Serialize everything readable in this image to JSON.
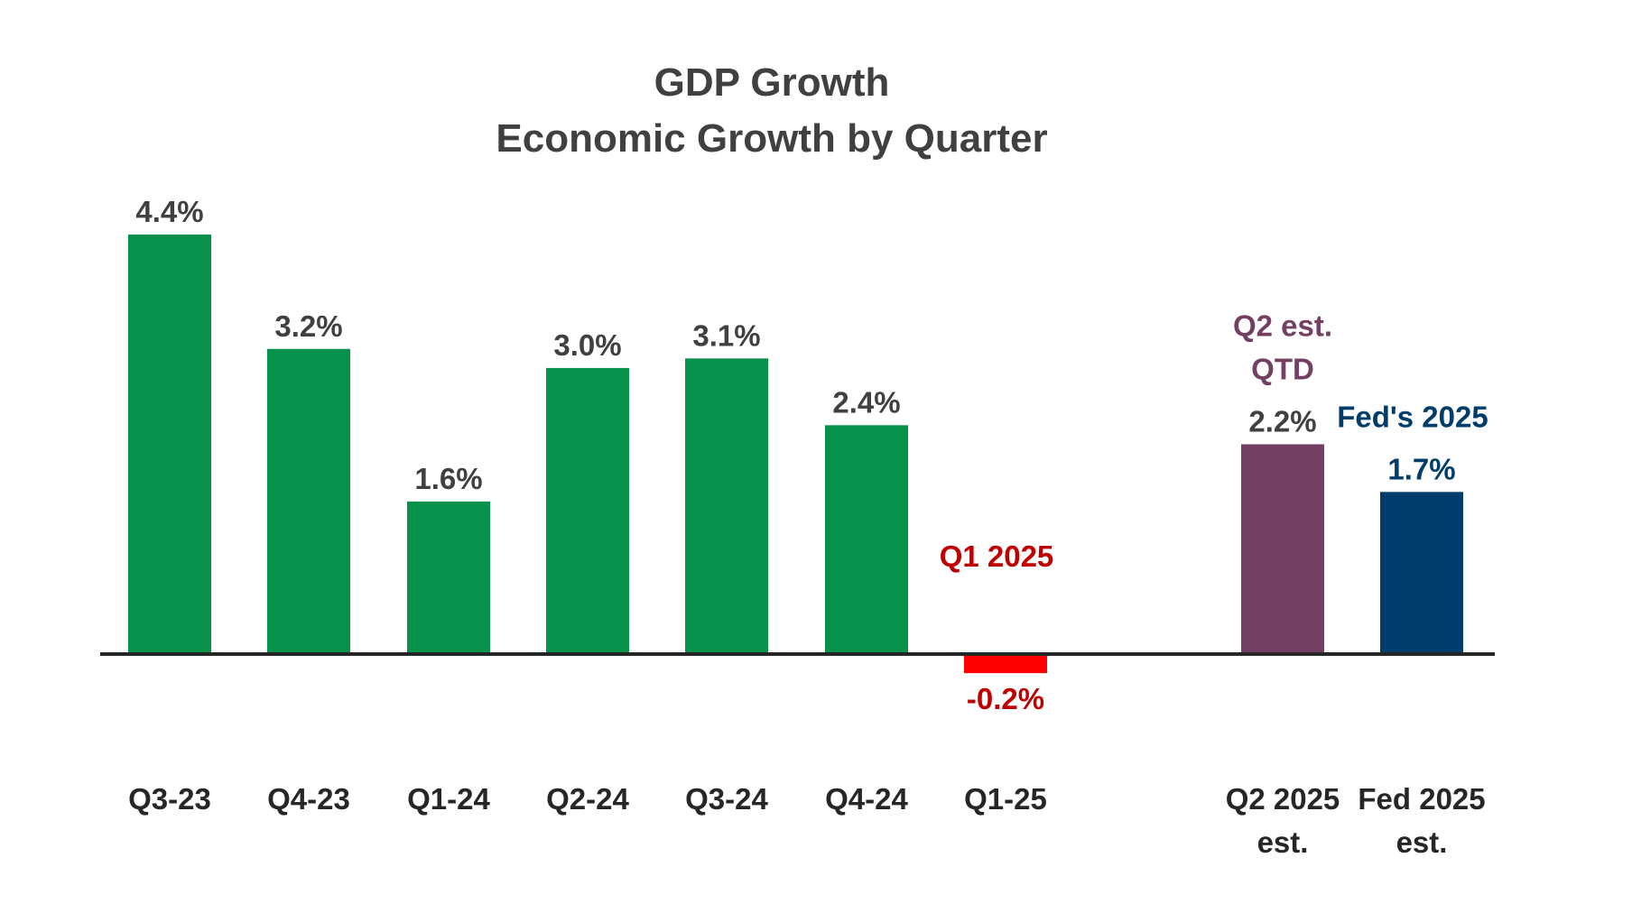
{
  "chart_data": {
    "type": "bar",
    "title": "GDP Growth",
    "subtitle": "Economic Growth by Quarter",
    "xlabel": "",
    "ylabel": "",
    "grid": false,
    "legend": "none",
    "ylim": [
      -0.5,
      5.0
    ],
    "categories": [
      {
        "label": [
          "Q3-23"
        ]
      },
      {
        "label": [
          "Q4-23"
        ]
      },
      {
        "label": [
          "Q1-24"
        ]
      },
      {
        "label": [
          "Q2-24"
        ]
      },
      {
        "label": [
          "Q3-24"
        ]
      },
      {
        "label": [
          "Q4-24"
        ]
      },
      {
        "label": [
          "Q1-25"
        ]
      },
      {
        "label": [
          "Q2 2025",
          "est."
        ]
      },
      {
        "label": [
          "Fed 2025",
          "est."
        ]
      }
    ],
    "values": [
      4.4,
      3.2,
      1.6,
      3.0,
      3.1,
      2.4,
      -0.2,
      2.2,
      1.7
    ],
    "value_labels": [
      "4.4%",
      "3.2%",
      "1.6%",
      "3.0%",
      "3.1%",
      "2.4%",
      "-0.2%",
      "2.2%",
      "1.7%"
    ],
    "bar_colors": [
      "#06924a",
      "#06924a",
      "#06924a",
      "#06924a",
      "#06924a",
      "#06924a",
      "#ff0000",
      "#733f63",
      "#003d6b"
    ],
    "label_colors": [
      "#404040",
      "#404040",
      "#404040",
      "#404040",
      "#404040",
      "#404040",
      "#c00000",
      "#404040",
      "#003d6b"
    ],
    "annotations": [
      {
        "index": 6,
        "lines": [
          "Q1 2025"
        ],
        "color": "#c00000"
      },
      {
        "index": 7,
        "lines": [
          "Q2 est.",
          "QTD"
        ],
        "color": "#733f63"
      },
      {
        "index": 8,
        "lines": [
          "Fed's 2025"
        ],
        "color": "#003d6b"
      }
    ]
  }
}
